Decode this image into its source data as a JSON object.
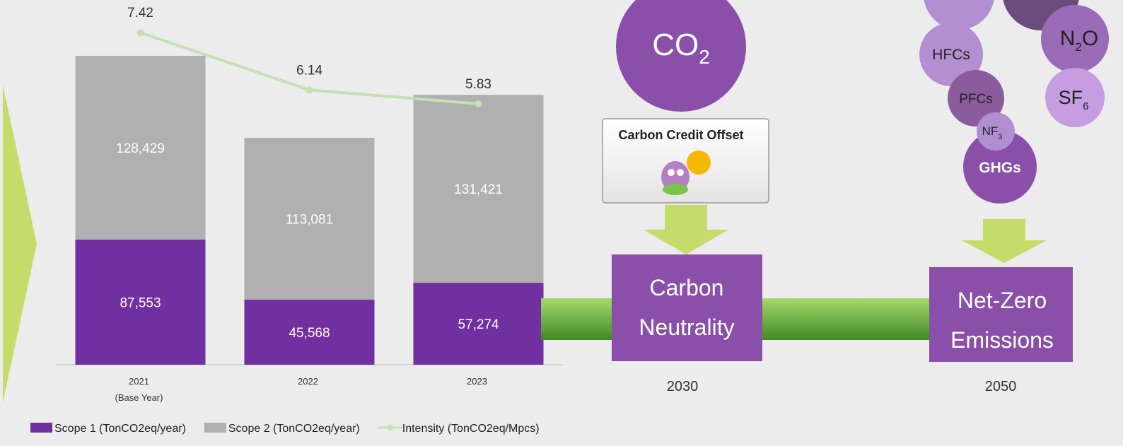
{
  "chart_data": {
    "type": "bar",
    "stacked": true,
    "categories": [
      "2021",
      "2022",
      "2023"
    ],
    "base_year_note": "(Base Year)",
    "series": [
      {
        "name": "Scope 1 (TonCO2eq/year)",
        "color": "#7030a0",
        "values": [
          87553,
          45568,
          57274
        ],
        "value_labels": [
          "87,553",
          "45,568",
          "57,274"
        ]
      },
      {
        "name": "Scope 2 (TonCO2eq/year)",
        "color": "#b0b0b0",
        "values": [
          128429,
          113081,
          131421
        ],
        "value_labels": [
          "128,429",
          "113,081",
          "131,421"
        ]
      },
      {
        "name": "Intensity (TonCO2eq/Mpcs)",
        "type": "line",
        "axis": "y2",
        "color": "#c5e0b4",
        "values": [
          7.42,
          6.14,
          5.83
        ]
      }
    ],
    "ylim": [
      0,
      255000
    ],
    "y2lim": [
      0,
      8.15
    ],
    "grid": false,
    "legend": "bottom"
  },
  "roadmap": {
    "co2": {
      "text": "CO",
      "sub": "2"
    },
    "credit": "Carbon Credit Offset",
    "milestones": [
      {
        "lines": [
          "Carbon",
          "Neutrality"
        ],
        "year": "2030"
      },
      {
        "lines": [
          "Net-Zero",
          "Emissions"
        ],
        "year": "2050"
      }
    ],
    "gases": [
      {
        "text": "HFCs"
      },
      {
        "text": "PFCs"
      },
      {
        "text": "NF",
        "sub": "3"
      },
      {
        "text": "N",
        "sub": "2",
        "rest": "O"
      },
      {
        "text": "SF",
        "sub": "6"
      },
      {
        "text": "GHGs"
      }
    ]
  }
}
